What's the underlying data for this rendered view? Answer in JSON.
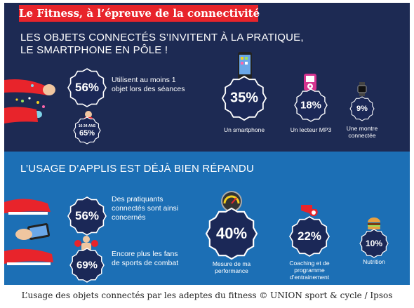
{
  "banner": {
    "title": "Le Fitness, à l’épreuve de la connectivité"
  },
  "section1": {
    "headline_line1": "LES OBJETS CONNECTÉS S’INVITENT À LA PRATIQUE,",
    "headline_line2": "LE SMARTPHONE EN PÔLE !",
    "main_stat": {
      "value": "56%",
      "text_line1": "Utilisent au moins 1",
      "text_line2": "objet lors des séances"
    },
    "age_badge": {
      "age": "16-34 ANS",
      "value": "65%"
    },
    "devices": [
      {
        "value": "35%",
        "label_line1": "Un smartphone",
        "label_line2": "",
        "icon": "smartphone-icon"
      },
      {
        "value": "18%",
        "label_line1": "Un lecteur MP3",
        "label_line2": "",
        "icon": "mp3-player-icon"
      },
      {
        "value": "9%",
        "label_line1": "Une montre",
        "label_line2": "connectée",
        "icon": "smartwatch-icon"
      }
    ]
  },
  "section2": {
    "headline": "L’USAGE D’APPLIS EST DÉJÀ BIEN RÉPANDU",
    "stat1": {
      "value": "56%",
      "text_line1": "Des pratiquants",
      "text_line2": "connectés sont ainsi",
      "text_line3": "concernés"
    },
    "stat2": {
      "value": "69%",
      "text_line1": "Encore plus les fans",
      "text_line2": "de sports de combat"
    },
    "apps": [
      {
        "value": "40%",
        "label_line1": "Mesure de ma",
        "label_line2": "performance",
        "label_line3": "",
        "icon": "gauge-icon"
      },
      {
        "value": "22%",
        "label_line1": "Coaching et de",
        "label_line2": "programme",
        "label_line3": "d’entrainement",
        "icon": "whistle-icon"
      },
      {
        "value": "10%",
        "label_line1": "Nutrition",
        "label_line2": "",
        "label_line3": "",
        "icon": "burger-icon"
      }
    ]
  },
  "caption": {
    "text": "L’usage des objets connectés par les adeptes du fitness © UNION sport & cycle / Ipsos"
  },
  "colors": {
    "top_bg": "#1d2a53",
    "bottom_bg": "#1c6fb5",
    "banner": "#e8242b",
    "badge": "#1b2857"
  }
}
